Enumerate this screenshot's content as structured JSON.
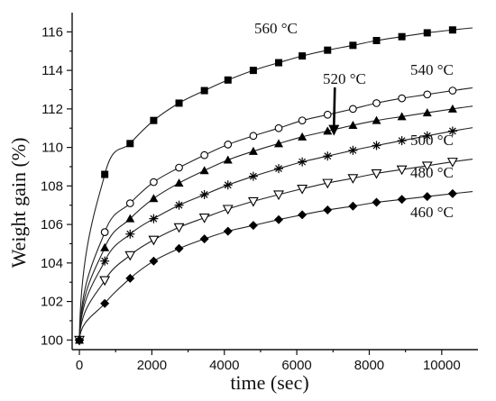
{
  "chart_data": {
    "type": "scatter",
    "xlabel": "time (sec)",
    "ylabel": "Weight gain (%)",
    "xlim": [
      -200,
      11000
    ],
    "ylim": [
      99.5,
      117
    ],
    "xticks": [
      0,
      2000,
      4000,
      6000,
      8000,
      10000
    ],
    "yticks": [
      100,
      102,
      104,
      106,
      108,
      110,
      112,
      114,
      116
    ],
    "grid": false,
    "series": [
      {
        "name": "560 °C",
        "marker": "filled-square",
        "x": [
          0,
          700,
          1400,
          2050,
          2750,
          3450,
          4100,
          4800,
          5500,
          6150,
          6850,
          7550,
          8200,
          8900,
          9600,
          10300
        ],
        "y": [
          100,
          108.6,
          110.2,
          111.4,
          112.3,
          112.95,
          113.5,
          114.0,
          114.4,
          114.75,
          115.05,
          115.3,
          115.55,
          115.75,
          115.95,
          116.1
        ]
      },
      {
        "name": "540 °C",
        "marker": "open-circle",
        "x": [
          0,
          700,
          1400,
          2050,
          2750,
          3450,
          4100,
          4800,
          5500,
          6150,
          6850,
          7550,
          8200,
          8900,
          9600,
          10300
        ],
        "y": [
          100,
          105.6,
          107.1,
          108.2,
          108.95,
          109.6,
          110.15,
          110.6,
          111.0,
          111.4,
          111.7,
          112.0,
          112.3,
          112.55,
          112.75,
          112.95
        ]
      },
      {
        "name": "520 °C",
        "marker": "filled-triangle",
        "x": [
          0,
          700,
          1400,
          2050,
          2750,
          3450,
          4100,
          4800,
          5500,
          6150,
          6850,
          7550,
          8200,
          8900,
          9600,
          10300
        ],
        "y": [
          100,
          104.8,
          106.3,
          107.35,
          108.15,
          108.8,
          109.35,
          109.8,
          110.2,
          110.55,
          110.85,
          111.15,
          111.4,
          111.6,
          111.8,
          112.0
        ]
      },
      {
        "name": "500 °C",
        "marker": "asterisk",
        "x": [
          0,
          700,
          1400,
          2050,
          2750,
          3450,
          4100,
          4800,
          5500,
          6150,
          6850,
          7550,
          8200,
          8900,
          9600,
          10300
        ],
        "y": [
          100,
          104.1,
          105.5,
          106.3,
          107.0,
          107.55,
          108.05,
          108.5,
          108.9,
          109.25,
          109.55,
          109.85,
          110.1,
          110.35,
          110.6,
          110.85
        ]
      },
      {
        "name": "480 °C",
        "marker": "open-triangle-down",
        "x": [
          0,
          700,
          1400,
          2050,
          2750,
          3450,
          4100,
          4800,
          5500,
          6150,
          6850,
          7550,
          8200,
          8900,
          9600,
          10300
        ],
        "y": [
          100,
          103.1,
          104.4,
          105.2,
          105.85,
          106.35,
          106.8,
          107.2,
          107.55,
          107.85,
          108.15,
          108.4,
          108.65,
          108.85,
          109.05,
          109.25
        ]
      },
      {
        "name": "460 °C",
        "marker": "filled-diamond",
        "x": [
          0,
          700,
          1400,
          2050,
          2750,
          3450,
          4100,
          4800,
          5500,
          6150,
          6850,
          7550,
          8200,
          8900,
          9600,
          10300
        ],
        "y": [
          100,
          101.9,
          103.2,
          104.1,
          104.75,
          105.25,
          105.65,
          105.95,
          106.25,
          106.5,
          106.75,
          106.95,
          107.15,
          107.3,
          107.45,
          107.6
        ]
      }
    ],
    "annotations": [
      {
        "text": "520 °C",
        "arrow_to": {
          "x": 7000,
          "y": 110.7
        }
      }
    ]
  }
}
